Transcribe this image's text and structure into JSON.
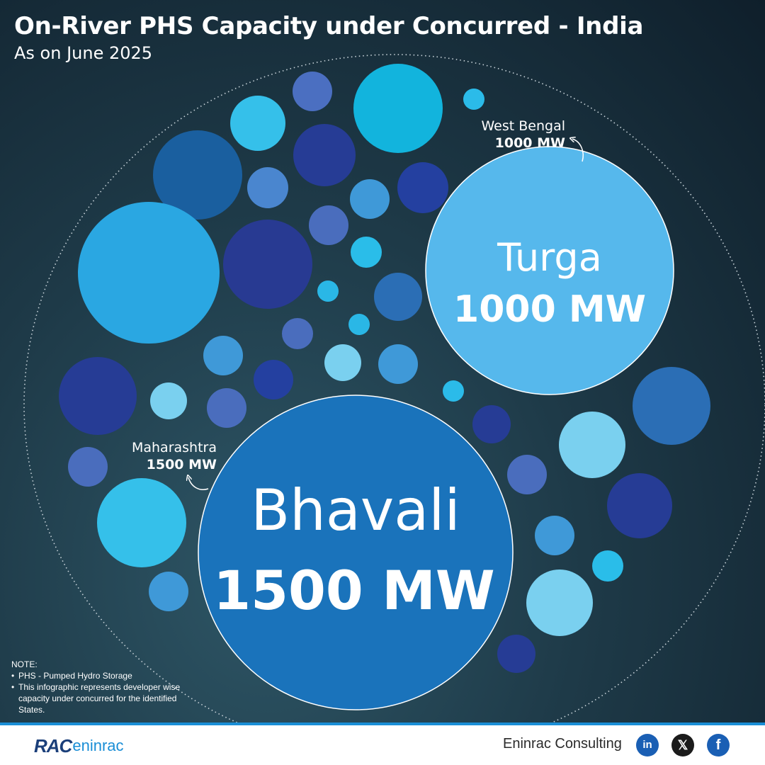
{
  "header": {
    "title": "On-River PHS Capacity under Concurred - India",
    "subtitle": "As on June 2025"
  },
  "chart_data": {
    "type": "bubble",
    "title": "On-River PHS Capacity under Concurred - India",
    "subtitle": "As on June 2025",
    "unit": "MW",
    "bubbles": [
      {
        "project": "Bhavali",
        "state": "Maharashtra",
        "capacity": 1500,
        "capacity_label": "1500 MW",
        "color": "#1a73bb"
      },
      {
        "project": "Turga",
        "state": "West Bengal",
        "capacity": 1000,
        "capacity_label": "1000 MW",
        "color": "#56b8ec"
      }
    ]
  },
  "note": {
    "heading": "NOTE:",
    "items": [
      "PHS - Pumped Hydro Storage",
      "This infographic represents developer wise capacity under concurred for the identified States."
    ]
  },
  "footer": {
    "logo_rac": "RAC",
    "logo_eninrac": "eninrac",
    "brand": "Eninrac Consulting",
    "social": [
      {
        "name": "linkedin-icon",
        "glyph": "in"
      },
      {
        "name": "x-icon",
        "glyph": "𝕏"
      },
      {
        "name": "facebook-icon",
        "glyph": "f"
      }
    ]
  },
  "colors": {
    "accent_blue": "#1a8ed6",
    "bhavali": "#1a73bb",
    "turga": "#56b8ec"
  }
}
